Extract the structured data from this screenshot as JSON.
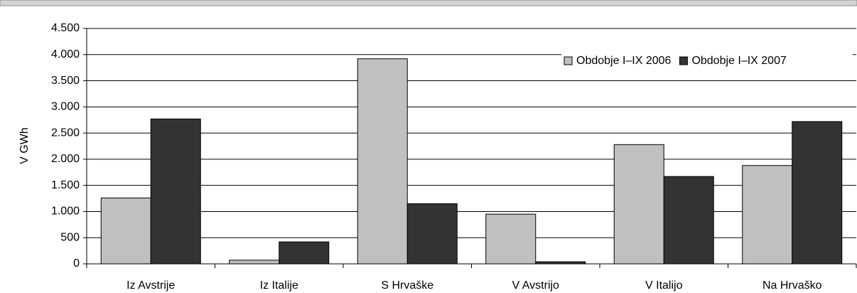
{
  "chart_data": {
    "type": "bar",
    "categories": [
      "Iz Avstrije",
      "Iz Italije",
      "S Hrvaške",
      "V Avstrijo",
      "V Italijo",
      "Na Hrvaško"
    ],
    "series": [
      {
        "name": "Obdobje I–IX 2006",
        "color": "#c0c0c0",
        "values": [
          1260,
          70,
          3920,
          950,
          2280,
          1880
        ]
      },
      {
        "name": "Obdobje I–IX 2007",
        "color": "#333333",
        "values": [
          2770,
          420,
          1150,
          40,
          1670,
          2720
        ]
      }
    ],
    "ylabel": "V GWh",
    "ylim": [
      0,
      4500
    ],
    "yticks": [
      0,
      500,
      {
        "value": 1000,
        "label": "1.000"
      },
      {
        "value": 1500,
        "label": "1.500"
      },
      {
        "value": 2000,
        "label": "2.000"
      },
      {
        "value": 2500,
        "label": "2.500"
      },
      {
        "value": 3000,
        "label": "3.000"
      },
      {
        "value": 3500,
        "label": "3.500"
      },
      {
        "value": 4000,
        "label": "4.000"
      },
      {
        "value": 4500,
        "label": "4.500"
      }
    ],
    "grid": true,
    "legend": "top-right"
  }
}
